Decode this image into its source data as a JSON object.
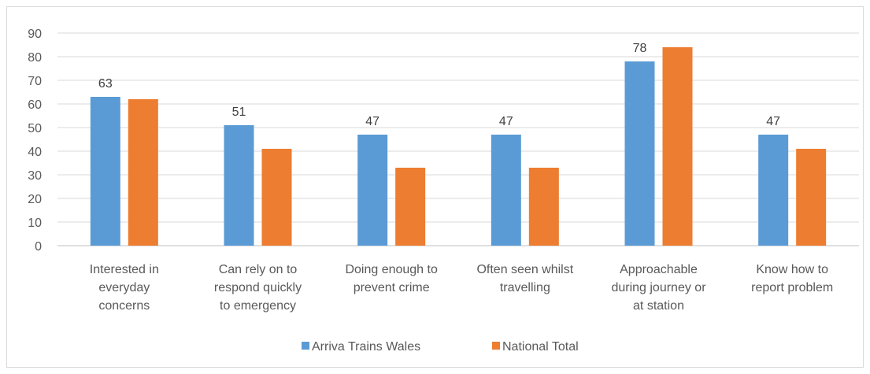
{
  "chart_data": {
    "type": "bar",
    "categories": [
      [
        "Interested in",
        "everyday",
        "concerns"
      ],
      [
        "Can rely on to",
        "respond quickly",
        "to emergency"
      ],
      [
        "Doing enough to",
        "prevent crime"
      ],
      [
        "Often seen whilst",
        "travelling"
      ],
      [
        "Approachable",
        "during journey or",
        "at station"
      ],
      [
        "Know how to",
        "report problem"
      ]
    ],
    "series": [
      {
        "name": "Arriva Trains Wales",
        "color": "#5b9bd5",
        "values": [
          63,
          51,
          47,
          47,
          78,
          47
        ],
        "data_labels": [
          "63",
          "51",
          "47",
          "47",
          "78",
          "47"
        ]
      },
      {
        "name": "National Total",
        "color": "#ed7d31",
        "values": [
          62,
          41,
          33,
          33,
          84,
          41
        ],
        "data_labels": null
      }
    ],
    "ylim": [
      0,
      90
    ],
    "yticks": [
      0,
      10,
      20,
      30,
      40,
      50,
      60,
      70,
      80,
      90
    ],
    "grid": true,
    "legend": "bottom-center"
  }
}
